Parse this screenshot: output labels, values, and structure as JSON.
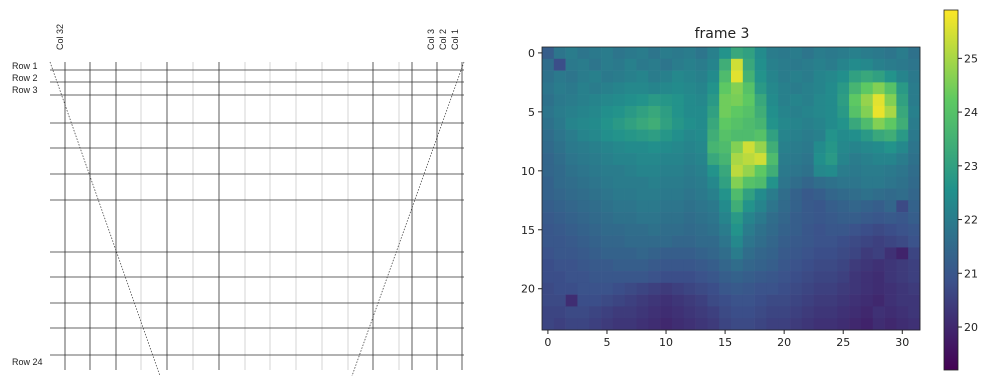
{
  "diagram": {
    "column_labels": [
      "Col 32",
      "Col 3",
      "Col 2",
      "Col 1"
    ],
    "row_labels": [
      "Row 1",
      "Row 2",
      "Row 3",
      "Row 24"
    ]
  },
  "chart_data": {
    "type": "heatmap",
    "title": "frame 3",
    "colormap": "viridis",
    "xlim": [
      -0.5,
      31.5
    ],
    "ylim": [
      23.5,
      -0.5
    ],
    "clim": [
      19.2,
      25.9
    ],
    "xticks": [
      0,
      5,
      10,
      15,
      20,
      25,
      30
    ],
    "yticks": [
      0,
      5,
      10,
      15,
      20
    ],
    "colorbar_ticks": [
      20,
      21,
      22,
      23,
      24,
      25
    ],
    "values": [
      [
        21.2,
        21.8,
        22,
        21.8,
        21.9,
        22,
        21.8,
        21.9,
        22,
        21.8,
        22,
        21.9,
        22,
        21.8,
        22.1,
        22.6,
        23.2,
        23,
        22.4,
        22,
        21.9,
        22,
        21.8,
        22,
        21.9,
        22,
        22.1,
        22,
        21.9,
        21.8,
        22,
        21.7
      ],
      [
        21.6,
        20.8,
        21.9,
        22,
        21.8,
        22,
        21.9,
        22.1,
        21.9,
        22,
        21.8,
        22,
        22.1,
        22,
        22.2,
        23.4,
        25.4,
        23.2,
        22.5,
        22.1,
        22,
        21.9,
        22,
        22.1,
        22,
        22.2,
        22.4,
        22.3,
        22.1,
        22,
        21.9,
        21.8
      ],
      [
        21.7,
        21.9,
        21.8,
        22,
        22.1,
        21.9,
        22,
        22.1,
        22.2,
        22,
        22.1,
        22.3,
        22.2,
        22.1,
        22.4,
        23.8,
        25.6,
        23.5,
        22.6,
        22.2,
        22,
        22.1,
        22,
        22.2,
        22.3,
        22.5,
        23,
        23.2,
        23,
        22.6,
        22.2,
        21.9
      ],
      [
        21.8,
        22,
        21.9,
        22.1,
        22,
        22.1,
        22.2,
        22.3,
        22.3,
        22.2,
        22.3,
        22.4,
        22.3,
        22.2,
        22.6,
        24.2,
        24.6,
        24,
        22.8,
        22.3,
        22.1,
        22,
        22.1,
        22.2,
        22.4,
        22.8,
        23.6,
        24.2,
        24.6,
        24,
        22.8,
        22
      ],
      [
        21.7,
        21.9,
        22,
        22.1,
        22.2,
        22.3,
        22.4,
        22.5,
        22.6,
        22.8,
        22.7,
        22.6,
        22.4,
        22.3,
        22.8,
        24.4,
        24.5,
        24.2,
        23.2,
        22.4,
        22.1,
        22.2,
        22.1,
        22.3,
        22.4,
        22.9,
        24.2,
        24.8,
        25.6,
        24.6,
        23,
        22
      ],
      [
        21.8,
        22,
        22.1,
        22.2,
        22.3,
        22.5,
        22.6,
        22.8,
        23,
        23.2,
        22.9,
        22.6,
        22.4,
        22.4,
        23,
        24.4,
        24.2,
        24,
        23.4,
        22.5,
        22.2,
        22.1,
        22.2,
        22.3,
        22.4,
        22.8,
        24,
        24.6,
        25.7,
        25,
        23.2,
        22.1
      ],
      [
        21.7,
        21.9,
        22.2,
        22.3,
        22.4,
        22.6,
        22.8,
        23,
        23.2,
        23.4,
        23,
        22.7,
        22.5,
        22.4,
        23.2,
        24.2,
        24,
        23.8,
        23.6,
        22.6,
        22.3,
        22.2,
        22.1,
        22.2,
        22.4,
        22.6,
        23.2,
        23.8,
        24.6,
        24.2,
        23.4,
        22
      ],
      [
        21.6,
        21.8,
        22,
        22.2,
        22.3,
        22.5,
        22.6,
        22.7,
        22.8,
        22.9,
        22.7,
        22.5,
        22.3,
        22.4,
        23.4,
        24,
        23.8,
        23.8,
        24,
        23,
        22.2,
        22.1,
        22,
        22.1,
        22.6,
        22.4,
        22.5,
        22.8,
        23.2,
        23.4,
        22.8,
        21.9
      ],
      [
        21.5,
        21.7,
        21.9,
        22,
        22.1,
        22.2,
        22.3,
        22.4,
        22.4,
        22.5,
        22.4,
        22.3,
        22.2,
        22.3,
        23.6,
        23.8,
        24.6,
        25.4,
        24.8,
        23.4,
        22.1,
        22,
        21.9,
        22.4,
        22.7,
        22.3,
        22.2,
        22.3,
        22.4,
        22.6,
        22.3,
        21.8
      ],
      [
        21.4,
        21.6,
        21.8,
        21.9,
        22,
        22.1,
        22.2,
        22.2,
        22.3,
        22.3,
        22.2,
        22.2,
        22.1,
        22.2,
        23.2,
        23.6,
        25,
        25.2,
        25.4,
        23.8,
        22,
        21.9,
        21.8,
        22.5,
        22.8,
        22.2,
        22,
        22.1,
        22.2,
        22.2,
        22,
        21.7
      ],
      [
        21.4,
        21.5,
        21.7,
        21.8,
        21.9,
        22,
        22,
        22.1,
        22.2,
        22.2,
        22.1,
        22.1,
        22,
        22.1,
        22.6,
        23.2,
        25.2,
        24.8,
        24.2,
        23.4,
        21.9,
        21.8,
        21.7,
        22.3,
        22.4,
        22,
        21.9,
        22,
        22,
        21.9,
        21.8,
        21.6
      ],
      [
        21.3,
        21.5,
        21.6,
        21.7,
        21.8,
        21.9,
        22,
        22,
        22,
        22.1,
        22,
        22,
        21.9,
        22,
        22.3,
        23,
        24.6,
        24,
        23.8,
        22.6,
        21.8,
        21.6,
        21.4,
        21.6,
        21.7,
        21.8,
        21.8,
        21.9,
        21.9,
        21.8,
        21.7,
        21.5
      ],
      [
        21.3,
        21.4,
        21.5,
        21.6,
        21.7,
        21.8,
        21.9,
        21.9,
        22,
        22,
        21.9,
        21.9,
        21.8,
        21.9,
        22.1,
        22.6,
        23.8,
        23,
        22.4,
        22,
        21.6,
        21.3,
        21.1,
        21.2,
        21.4,
        21.5,
        21.6,
        21.7,
        21.6,
        21.5,
        21.6,
        21.4
      ],
      [
        21.2,
        21.3,
        21.4,
        21.5,
        21.6,
        21.7,
        21.8,
        21.8,
        21.9,
        21.9,
        21.8,
        21.8,
        21.7,
        21.8,
        21.9,
        22.4,
        23.4,
        22.6,
        22.2,
        21.8,
        21.5,
        21.3,
        21.1,
        21,
        21.2,
        21.3,
        21.4,
        21.3,
        21.2,
        21.4,
        20.7,
        21.3
      ],
      [
        21.1,
        21.2,
        21.3,
        21.4,
        21.5,
        21.6,
        21.7,
        21.7,
        21.8,
        21.8,
        21.7,
        21.7,
        21.6,
        21.7,
        21.8,
        22.2,
        22.8,
        22.2,
        21.9,
        21.6,
        21.4,
        21.2,
        21.1,
        21,
        21.1,
        21.2,
        21.2,
        21.1,
        21,
        21.1,
        21,
        21.2
      ],
      [
        21,
        21.1,
        21.2,
        21.3,
        21.4,
        21.5,
        21.5,
        21.6,
        21.6,
        21.7,
        21.6,
        21.6,
        21.5,
        21.6,
        21.7,
        22,
        22.6,
        22,
        21.7,
        21.5,
        21.3,
        21.2,
        21,
        20.9,
        21,
        21,
        20.9,
        20.8,
        20.7,
        20.8,
        20.9,
        21
      ],
      [
        21,
        21,
        21.1,
        21.2,
        21.3,
        21.4,
        21.4,
        21.5,
        21.5,
        21.5,
        21.5,
        21.4,
        21.4,
        21.5,
        21.5,
        21.8,
        22.3,
        21.8,
        21.6,
        21.4,
        21.2,
        21.1,
        21,
        20.9,
        20.9,
        20.8,
        20.7,
        20.6,
        20.5,
        20.6,
        20.7,
        20.9
      ],
      [
        20.9,
        21,
        21,
        21.1,
        21.2,
        21.3,
        21.3,
        21.3,
        21.4,
        21.3,
        21.2,
        21.2,
        21.2,
        21.3,
        21.4,
        21.6,
        22,
        21.6,
        21.4,
        21.3,
        21.1,
        21,
        20.9,
        20.8,
        20.8,
        20.7,
        20.6,
        20.4,
        20.5,
        20.2,
        19.9,
        20.6
      ],
      [
        20.8,
        20.9,
        20.9,
        21,
        21.1,
        21.1,
        21.2,
        21.2,
        21.2,
        21.1,
        21,
        21,
        21,
        21.1,
        21.2,
        21.4,
        21.6,
        21.4,
        21.3,
        21.2,
        21,
        20.9,
        20.8,
        20.7,
        20.7,
        20.6,
        20.4,
        20.3,
        20.2,
        20.3,
        20.4,
        20.5
      ],
      [
        20.8,
        20.8,
        20.9,
        20.9,
        21,
        21,
        21,
        21,
        21,
        20.9,
        20.8,
        20.8,
        20.8,
        20.9,
        21,
        21.2,
        21.3,
        21.2,
        21.1,
        21,
        20.9,
        20.8,
        20.7,
        20.6,
        20.6,
        20.5,
        20.3,
        20.2,
        20.1,
        20.3,
        20.4,
        20.5
      ],
      [
        20.7,
        20.8,
        20.8,
        20.9,
        20.9,
        20.9,
        20.8,
        20.7,
        20.6,
        20.5,
        20.4,
        20.5,
        20.6,
        20.7,
        20.8,
        21,
        21.1,
        21,
        20.9,
        20.9,
        20.8,
        20.7,
        20.6,
        20.5,
        20.5,
        20.4,
        20.3,
        20.2,
        20.1,
        20.2,
        20.3,
        20.4
      ],
      [
        20.7,
        20.7,
        20.1,
        20.8,
        20.8,
        20.7,
        20.6,
        20.5,
        20.4,
        20.3,
        20.2,
        20.3,
        20.4,
        20.5,
        20.7,
        20.8,
        20.9,
        20.9,
        20.8,
        20.7,
        20.7,
        20.6,
        20.5,
        20.4,
        20.4,
        20.3,
        20.2,
        20.1,
        20,
        20.2,
        20.3,
        20.3
      ],
      [
        20.6,
        20.6,
        20.7,
        20.7,
        20.6,
        20.5,
        20.4,
        20.4,
        20.3,
        20.2,
        20.1,
        20.2,
        20.3,
        20.4,
        20.5,
        20.7,
        20.8,
        20.8,
        20.7,
        20.6,
        20.6,
        20.5,
        20.4,
        20.3,
        20.3,
        20.2,
        20.1,
        20,
        20.2,
        20.1,
        20.2,
        20.3
      ],
      [
        20.6,
        20.5,
        20.6,
        20.6,
        20.5,
        20.4,
        20.3,
        20.3,
        20.2,
        20.1,
        20,
        20.1,
        20.2,
        20.3,
        20.4,
        20.6,
        20.7,
        20.7,
        20.6,
        20.5,
        20.5,
        20.4,
        20.3,
        20.2,
        20.2,
        20.1,
        20,
        19.9,
        20.1,
        20,
        20.1,
        20.2
      ]
    ]
  }
}
